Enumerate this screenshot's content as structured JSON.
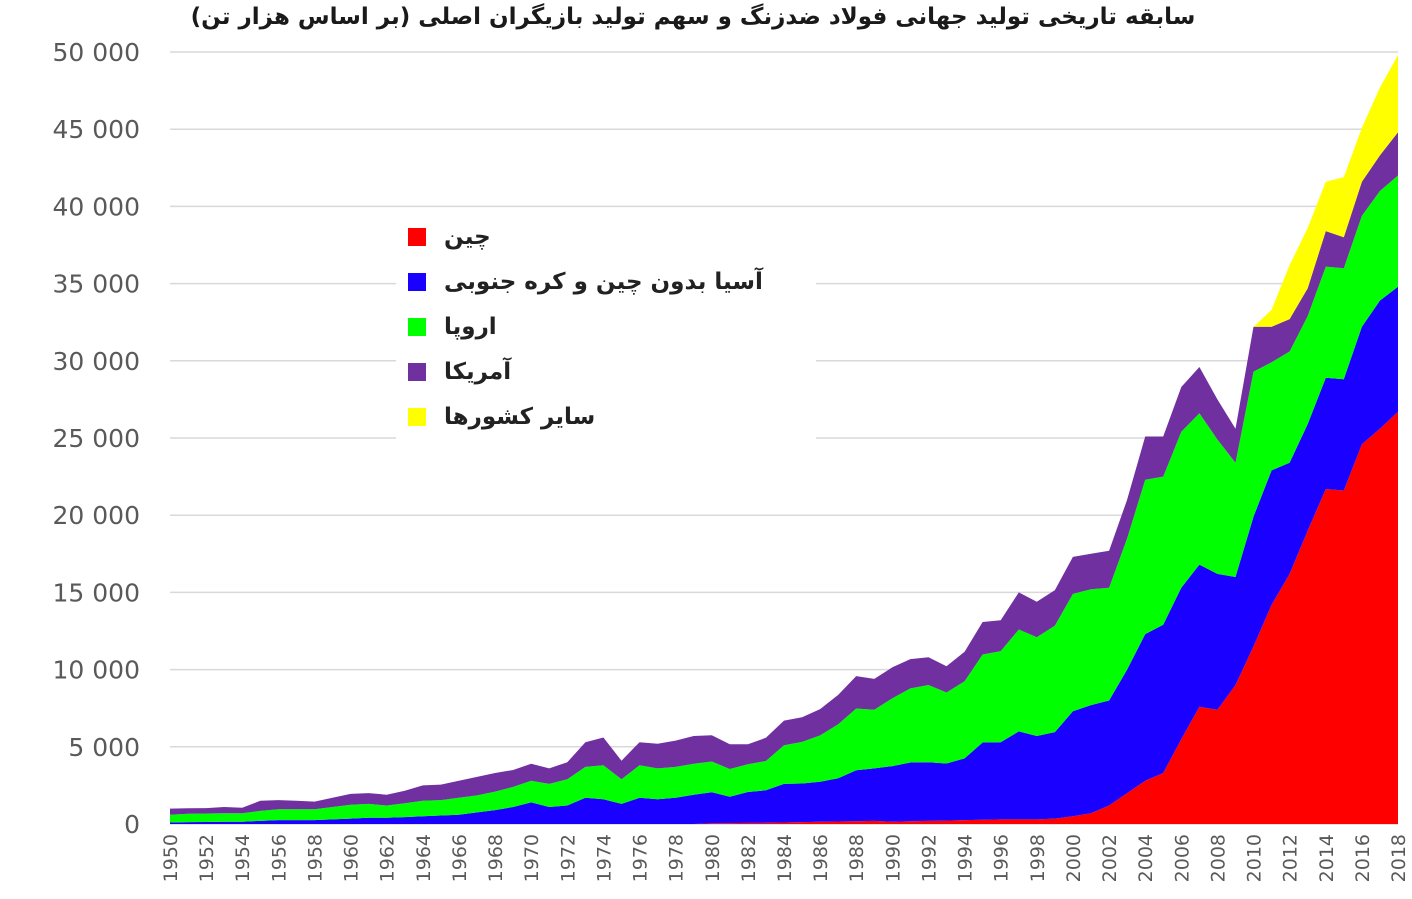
{
  "chart_data": {
    "type": "area",
    "stacked": true,
    "title": "سابقه تاریخی تولید جهانی فولاد ضدزنگ و سهم تولید بازیگران اصلی (بر اساس هزار تن)",
    "xlabel": "",
    "ylabel": "",
    "ylim": [
      0,
      50000
    ],
    "yticks": [
      0,
      5000,
      10000,
      15000,
      20000,
      25000,
      30000,
      35000,
      40000,
      45000,
      50000
    ],
    "ytick_labels": [
      "0",
      "5 000",
      "10 000",
      "15 000",
      "20 000",
      "25 000",
      "30 000",
      "35 000",
      "40 000",
      "45 000",
      "50 000"
    ],
    "xticks": [
      "1950",
      "1952",
      "1954",
      "1956",
      "1958",
      "1960",
      "1962",
      "1964",
      "1966",
      "1968",
      "1970",
      "1972",
      "1974",
      "1976",
      "1978",
      "1980",
      "1982",
      "1984",
      "1986",
      "1988",
      "1990",
      "1992",
      "1994",
      "1996",
      "1998",
      "2000",
      "2002",
      "2004",
      "2006",
      "2008",
      "2010",
      "2012",
      "2014",
      "2016",
      "2018"
    ],
    "grid": "horizontal",
    "legend_position": "upper-left",
    "x": [
      1950,
      1951,
      1952,
      1953,
      1954,
      1955,
      1956,
      1957,
      1958,
      1959,
      1960,
      1961,
      1962,
      1963,
      1964,
      1965,
      1966,
      1967,
      1968,
      1969,
      1970,
      1971,
      1972,
      1973,
      1974,
      1975,
      1976,
      1977,
      1978,
      1979,
      1980,
      1981,
      1982,
      1983,
      1984,
      1985,
      1986,
      1987,
      1988,
      1989,
      1990,
      1991,
      1992,
      1993,
      1994,
      1995,
      1996,
      1997,
      1998,
      1999,
      2000,
      2001,
      2002,
      2003,
      2004,
      2005,
      2006,
      2007,
      2008,
      2009,
      2010,
      2011,
      2012,
      2013,
      2014,
      2015,
      2016,
      2017,
      2018
    ],
    "series": [
      {
        "name": "چین",
        "color": "#ff0000",
        "values": [
          0,
          0,
          0,
          0,
          0,
          0,
          0,
          0,
          0,
          0,
          0,
          0,
          0,
          0,
          0,
          0,
          0,
          0,
          0,
          0,
          0,
          0,
          0,
          0,
          0,
          0,
          0,
          0,
          0,
          0,
          50,
          60,
          70,
          80,
          100,
          120,
          140,
          160,
          180,
          200,
          150,
          180,
          200,
          220,
          250,
          280,
          300,
          300,
          300,
          350,
          500,
          700,
          1200,
          2000,
          2800,
          3300,
          5500,
          7600,
          7400,
          9000,
          11500,
          14200,
          16200,
          19000,
          21700,
          21600,
          24600,
          25600,
          26700
        ]
      },
      {
        "name": "آسیا بدون چین و کره جنوبی",
        "color": "#1a00ff",
        "values": [
          100,
          120,
          130,
          150,
          150,
          200,
          250,
          250,
          250,
          300,
          350,
          400,
          400,
          450,
          500,
          550,
          600,
          750,
          900,
          1100,
          1400,
          1100,
          1200,
          1700,
          1600,
          1300,
          1700,
          1600,
          1700,
          1900,
          2000,
          1700,
          2000,
          2100,
          2500,
          2500,
          2600,
          2800,
          3300,
          3400,
          3600,
          3800,
          3800,
          3700,
          4000,
          5000,
          5000,
          5700,
          5400,
          5600,
          6800,
          7000,
          6800,
          8000,
          9500,
          9600,
          9800,
          9200,
          8800,
          7000,
          8400,
          8700,
          7200,
          6900,
          7200,
          7200,
          7600,
          8300,
          8100
        ]
      },
      {
        "name": "اروپا",
        "color": "#00ff00",
        "values": [
          500,
          550,
          550,
          550,
          550,
          650,
          700,
          700,
          700,
          800,
          900,
          900,
          800,
          900,
          1000,
          1000,
          1100,
          1100,
          1200,
          1300,
          1400,
          1500,
          1700,
          2000,
          2200,
          1600,
          2100,
          2000,
          2000,
          2000,
          2000,
          1800,
          1800,
          1900,
          2500,
          2700,
          3000,
          3500,
          4000,
          3800,
          4400,
          4800,
          5000,
          4600,
          5000,
          5700,
          5900,
          6600,
          6400,
          6900,
          7600,
          7500,
          7300,
          8500,
          10000,
          9600,
          10100,
          9800,
          8700,
          7400,
          9400,
          7000,
          7200,
          7000,
          7200,
          7200,
          7200,
          7100,
          7200
        ]
      },
      {
        "name": "آمریکا",
        "color": "#7030a0",
        "values": [
          400,
          350,
          350,
          400,
          350,
          650,
          600,
          550,
          500,
          600,
          700,
          700,
          700,
          800,
          1000,
          1000,
          1100,
          1200,
          1200,
          1100,
          1100,
          1000,
          1100,
          1600,
          1800,
          1200,
          1500,
          1600,
          1700,
          1800,
          1700,
          1600,
          1300,
          1500,
          1600,
          1600,
          1700,
          1900,
          2100,
          2000,
          2000,
          1900,
          1800,
          1700,
          1900,
          2100,
          2000,
          2400,
          2300,
          2300,
          2400,
          2300,
          2400,
          2500,
          2800,
          2600,
          2900,
          3000,
          2600,
          2200,
          2900,
          2300,
          2100,
          1800,
          2300,
          2000,
          2200,
          2300,
          2800
        ]
      },
      {
        "name": "سایر کشورها",
        "color": "#ffff00",
        "values": [
          0,
          0,
          0,
          0,
          0,
          0,
          0,
          0,
          0,
          0,
          0,
          0,
          0,
          0,
          0,
          0,
          0,
          0,
          0,
          0,
          0,
          0,
          0,
          0,
          0,
          0,
          0,
          0,
          0,
          0,
          0,
          0,
          0,
          0,
          0,
          0,
          0,
          0,
          0,
          0,
          0,
          0,
          0,
          0,
          0,
          0,
          0,
          0,
          0,
          0,
          0,
          0,
          0,
          0,
          0,
          0,
          0,
          0,
          0,
          0,
          0,
          1100,
          3500,
          3900,
          3200,
          3900,
          3500,
          4400,
          5000
        ]
      }
    ]
  }
}
